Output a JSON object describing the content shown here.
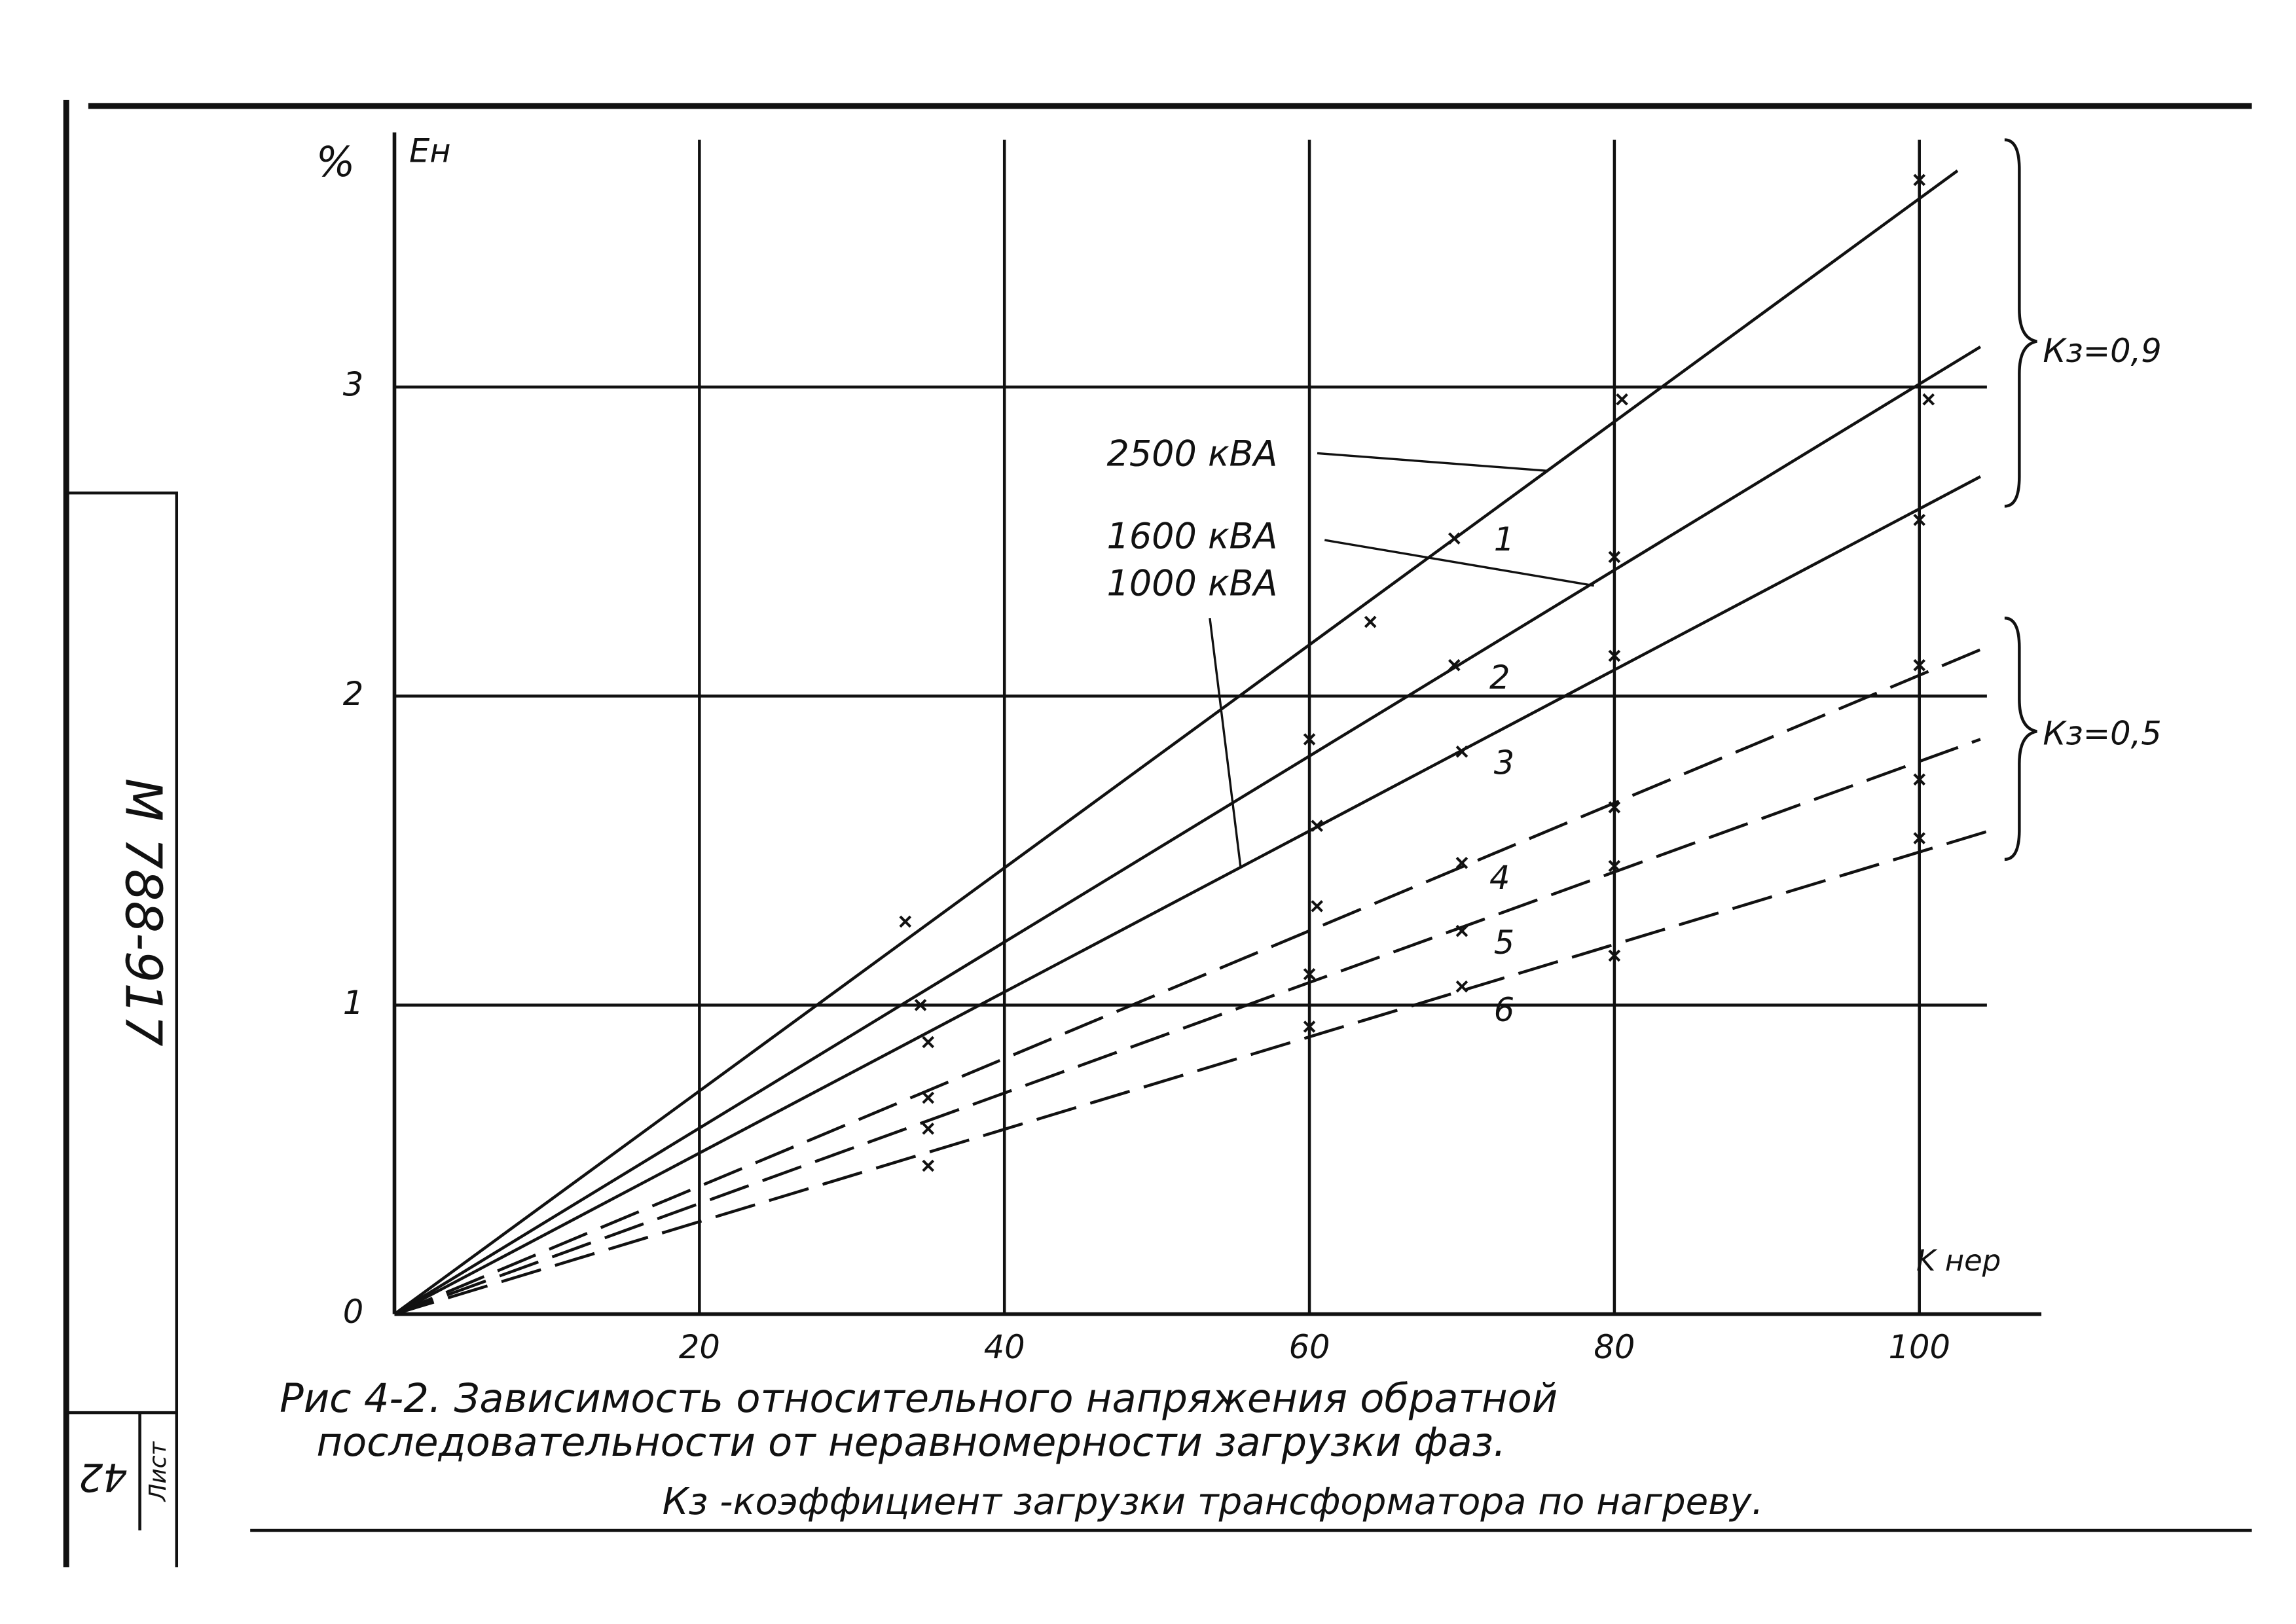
{
  "chart_data": {
    "type": "line",
    "y_unit": "%",
    "y_label": "Eн",
    "x_label": "K нер",
    "xlim": [
      0,
      108
    ],
    "ylim": [
      0,
      3.8
    ],
    "xticks": [
      20,
      40,
      60,
      80,
      100
    ],
    "yticks": [
      0,
      1,
      2,
      3
    ],
    "grid": true,
    "series": [
      {
        "name": "1",
        "color": "#111111",
        "dashed": false,
        "x": [
          0,
          102.5
        ],
        "values": [
          0,
          3.7
        ]
      },
      {
        "name": "2",
        "color": "#111111",
        "dashed": false,
        "x": [
          0,
          104
        ],
        "values": [
          0,
          3.13
        ]
      },
      {
        "name": "3",
        "color": "#111111",
        "dashed": false,
        "x": [
          0,
          104
        ],
        "values": [
          0,
          2.71
        ]
      },
      {
        "name": "4",
        "color": "#111111",
        "dashed": true,
        "x": [
          0,
          104
        ],
        "values": [
          0,
          2.15
        ]
      },
      {
        "name": "5",
        "color": "#111111",
        "dashed": true,
        "x": [
          0,
          104
        ],
        "values": [
          0,
          1.86
        ]
      },
      {
        "name": "6",
        "color": "#111111",
        "dashed": true,
        "x": [
          0,
          105
        ],
        "values": [
          0,
          1.57
        ]
      }
    ],
    "measured": {
      "x": [
        33.5,
        64,
        69.5,
        100,
        34.5,
        60,
        69.5,
        80.5,
        100.6,
        35,
        60.5,
        70,
        80,
        80,
        100,
        100,
        35,
        35,
        35,
        60.5,
        60,
        60,
        70,
        70,
        70,
        80,
        80,
        80,
        100,
        100
      ],
      "y": [
        1.27,
        2.24,
        2.51,
        3.67,
        1.0,
        1.86,
        2.1,
        2.96,
        2.96,
        0.88,
        1.58,
        1.82,
        2.45,
        2.13,
        2.57,
        2.1,
        0.7,
        0.6,
        0.48,
        1.32,
        1.1,
        0.93,
        1.46,
        1.24,
        1.06,
        1.64,
        1.45,
        1.16,
        1.73,
        1.54
      ]
    },
    "annotations": [
      "2500 кВА",
      "1600 кВА",
      "1000 кВА",
      "Кз=0,9",
      "Кз=0,5"
    ],
    "caption": [
      "Рис 4-2. Зависимость относительного напряжения обратной",
      "последовательности от неравномерности загрузки фаз.",
      "Кз -коэффициент загрузки трансформатора по нагреву."
    ]
  },
  "stamp": {
    "document_code": "М 788-917",
    "sheet_label": "Лист",
    "sheet_number": "42"
  }
}
